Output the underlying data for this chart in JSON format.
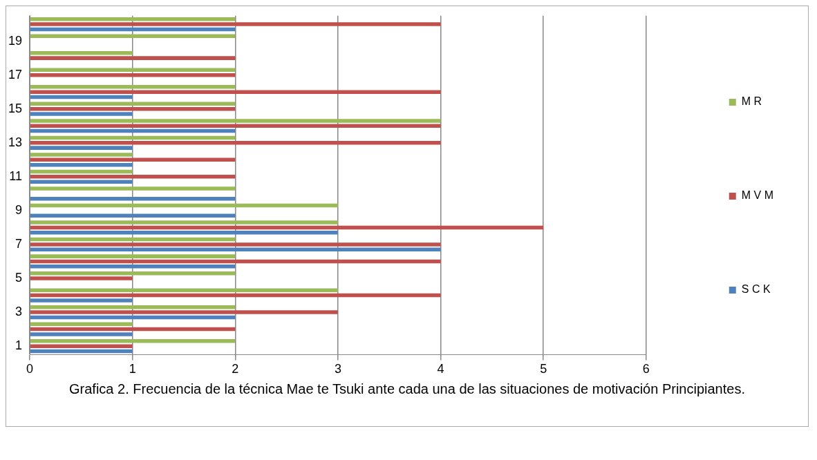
{
  "chart_data": {
    "type": "bar",
    "orientation": "horizontal",
    "title": "Grafica 2. Frecuencia de la técnica Mae te Tsuki ante cada una de las situaciones de motivación Principiantes.",
    "categories": [
      null,
      "19",
      null,
      "17",
      null,
      "15",
      null,
      "13",
      null,
      "11",
      null,
      "9",
      null,
      "7",
      null,
      "5",
      null,
      "3",
      null,
      "1"
    ],
    "series": [
      {
        "name": "M R",
        "color": "#9bbb59",
        "values": [
          2,
          2,
          1,
          2,
          2,
          2,
          4,
          2,
          1,
          1,
          2,
          3,
          3,
          2,
          2,
          2,
          3,
          2,
          1,
          2
        ]
      },
      {
        "name": "M V M",
        "color": "#c0504d",
        "values": [
          4,
          0,
          2,
          2,
          4,
          2,
          4,
          4,
          2,
          2,
          0,
          0,
          5,
          4,
          4,
          1,
          4,
          3,
          2,
          1
        ]
      },
      {
        "name": "S C K",
        "color": "#4f81bd",
        "values": [
          2,
          0,
          0,
          0,
          1,
          1,
          2,
          1,
          1,
          1,
          2,
          2,
          3,
          4,
          2,
          0,
          1,
          2,
          1,
          1
        ]
      }
    ],
    "xlim": [
      0,
      6
    ],
    "xticks": [
      0,
      1,
      2,
      3,
      4,
      5,
      6
    ],
    "grid": "x",
    "legend": "right"
  }
}
